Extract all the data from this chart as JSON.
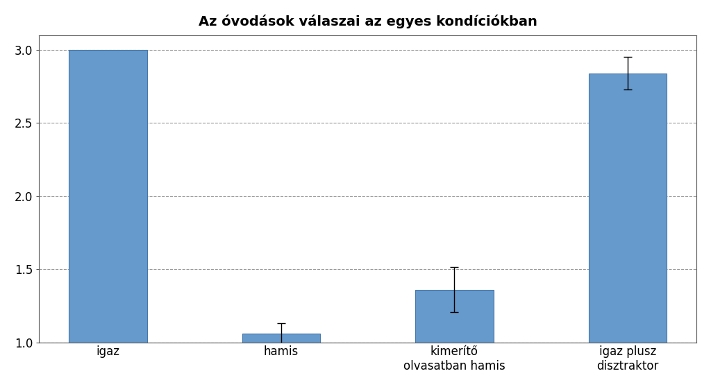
{
  "title": "Az óvodások válaszai az egyes kondíciókban",
  "categories": [
    "igaz",
    "hamis",
    "kimerítő\nolvasatban hamis",
    "igaz plusz\ndisztraktor"
  ],
  "values": [
    3.0,
    1.06,
    1.36,
    2.84
  ],
  "errors": [
    0.0,
    0.07,
    0.155,
    0.11
  ],
  "bar_color": "#6699CC",
  "bar_edgecolor": "#4477AA",
  "ylim": [
    1.0,
    3.1
  ],
  "ymin": 1.0,
  "yticks": [
    1.0,
    1.5,
    2.0,
    2.5,
    3.0
  ],
  "grid_color": "#999999",
  "grid_linestyle": "--",
  "background_color": "#FFFFFF",
  "title_fontsize": 14,
  "tick_fontsize": 12,
  "bar_width": 0.45,
  "figsize": [
    10.24,
    5.58
  ],
  "dpi": 100,
  "spine_color": "#555555"
}
